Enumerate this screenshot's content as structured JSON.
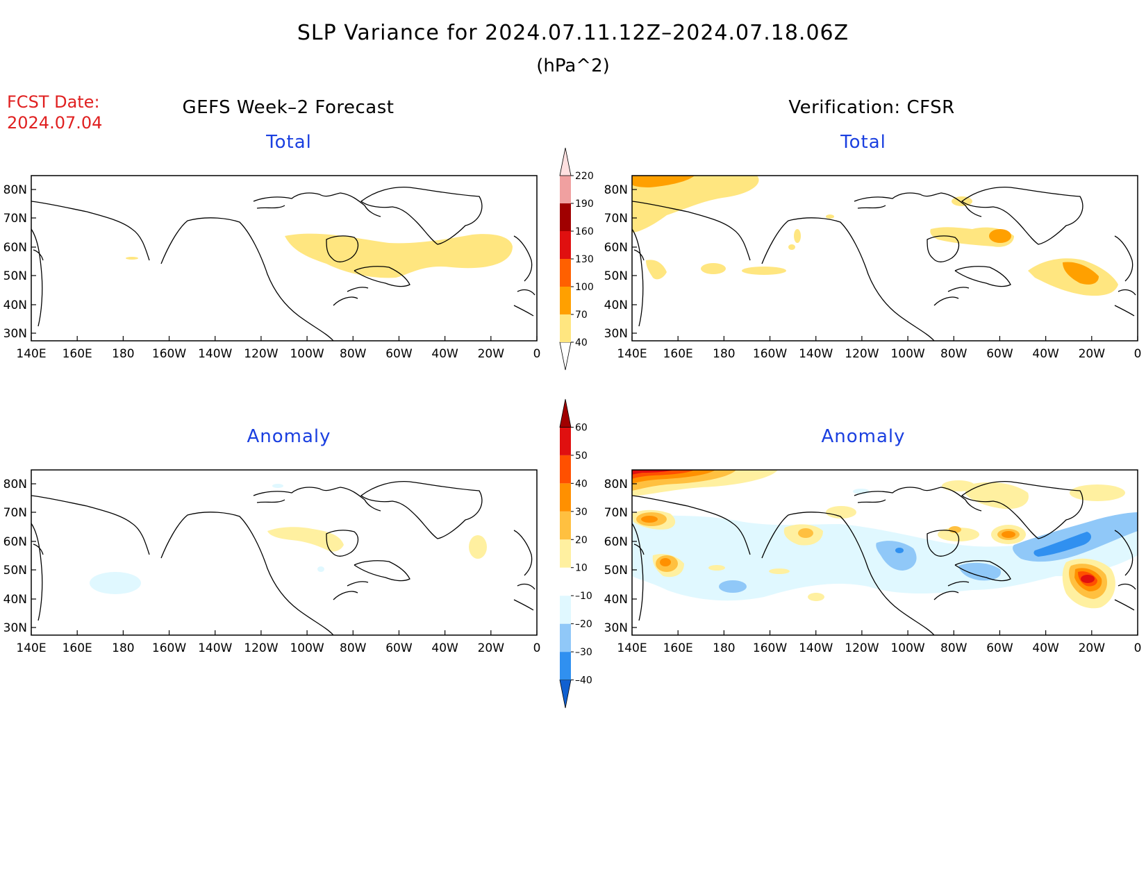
{
  "header": {
    "title": "SLP Variance for 2024.07.11.12Z–2024.07.18.06Z",
    "units": "(hPa^2)",
    "fcst_label": "FCST Date:",
    "fcst_date": "2024.07.04"
  },
  "columns": {
    "left_title": "GEFS Week–2 Forecast",
    "right_title": "Verification: CFSR"
  },
  "panels": {
    "total_label": "Total",
    "anomaly_label": "Anomaly"
  },
  "axes": {
    "lon_labels": [
      "140E",
      "160E",
      "180",
      "160W",
      "140W",
      "120W",
      "100W",
      "80W",
      "60W",
      "40W",
      "20W",
      "0"
    ],
    "lat_labels": [
      "80N",
      "70N",
      "60N",
      "50N",
      "40N",
      "30N"
    ]
  },
  "colorbars": {
    "total": {
      "levels": [
        "40",
        "70",
        "100",
        "130",
        "160",
        "190",
        "220"
      ],
      "colors": [
        "#ffffff",
        "#ffe680",
        "#ffa000",
        "#ff6000",
        "#e01010",
        "#a00000",
        "#f0a0a0",
        "#ffe0e0"
      ]
    },
    "anomaly": {
      "levels": [
        "–40",
        "–30",
        "–20",
        "–10",
        "10",
        "20",
        "30",
        "40",
        "50",
        "60"
      ],
      "colors": [
        "#1060d0",
        "#3090f0",
        "#90c8f8",
        "#e0f8ff",
        "#ffffff",
        "#fff0a0",
        "#ffc040",
        "#ff9000",
        "#ff5000",
        "#e01010",
        "#a00000"
      ]
    }
  }
}
